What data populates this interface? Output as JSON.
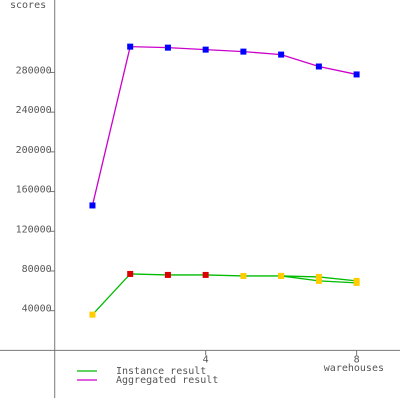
{
  "chart_data": {
    "type": "line",
    "y_label": "scores",
    "x_label": "warehouses",
    "x": [
      1,
      2,
      3,
      4,
      5,
      6,
      7,
      8
    ],
    "series": [
      {
        "name": "Instance result",
        "color": "#00bb00",
        "marker_colors": [
          "#ffcc00",
          "#dd0000",
          "#dd0000",
          "#dd0000",
          "#ffcc00",
          "#ffcc00",
          "#ffcc00",
          "#ffcc00"
        ],
        "values": [
          36000,
          77000,
          76000,
          76000,
          75000,
          75000,
          74000,
          70000
        ]
      },
      {
        "color": "#00bb00",
        "marker_colors": [
          null,
          null,
          null,
          null,
          null,
          "#ffcc00",
          "#ffcc00",
          "#ffcc00"
        ],
        "values": [
          null,
          null,
          null,
          null,
          null,
          75000,
          70000,
          68000
        ]
      },
      {
        "name": "Aggregated result",
        "color": "#cc00cc",
        "marker_colors": [
          "#0000ff",
          "#0000ff",
          "#0000ff",
          "#0000ff",
          "#0000ff",
          "#0000ff",
          "#0000ff",
          "#0000ff"
        ],
        "values": [
          146000,
          306000,
          305000,
          303000,
          301000,
          298000,
          286000,
          278000
        ]
      }
    ],
    "xlim": [
      -1.45,
      9.15
    ],
    "ylim": [
      -50000,
      353000
    ],
    "xticks": [
      4,
      8
    ],
    "yticks": [
      40000,
      80000,
      120000,
      160000,
      200000,
      240000,
      280000
    ]
  }
}
